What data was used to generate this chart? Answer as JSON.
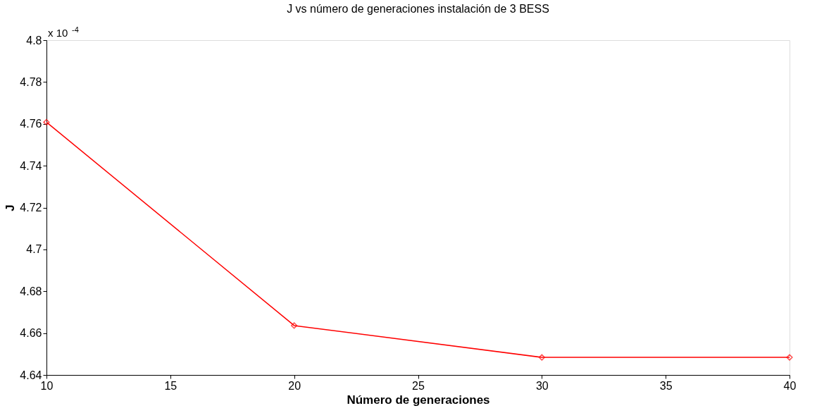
{
  "chart_data": {
    "type": "line",
    "title": "J vs número de generaciones instalación de 3 BESS",
    "xlabel": "Número de generaciones",
    "ylabel": "J",
    "x": [
      10,
      20,
      30,
      40
    ],
    "series": [
      {
        "color": "#ff0000",
        "values": [
          4.7608,
          4.6636,
          4.6484,
          4.6484
        ]
      }
    ],
    "xlim": [
      10,
      40
    ],
    "xticks": [
      10,
      15,
      20,
      25,
      30,
      35,
      40
    ],
    "ylim": [
      4.64,
      4.8
    ],
    "yticks": [
      4.64,
      4.66,
      4.68,
      4.7,
      4.72,
      4.74,
      4.76,
      4.78,
      4.8
    ],
    "annotations": [
      "x 10$^{-4}$"
    ],
    "grid": false,
    "marker": "diamond",
    "line_style": "solid"
  }
}
